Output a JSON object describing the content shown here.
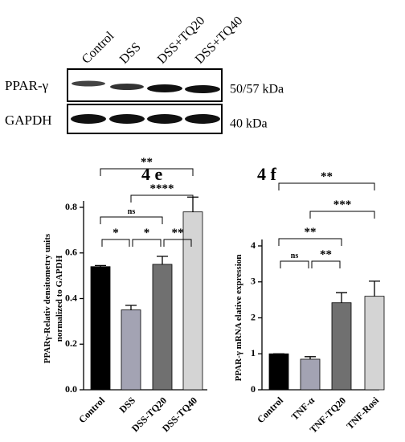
{
  "blot": {
    "lanes": [
      "Control",
      "DSS",
      "DSS+TQ20",
      "DSS+TQ40"
    ],
    "rows": [
      {
        "label": "PPAR-γ",
        "size": "50/57 kDa"
      },
      {
        "label": "GAPDH",
        "size": "40 kDa"
      }
    ]
  },
  "chart_data": [
    {
      "type": "bar",
      "panel": "4 e",
      "y_label": [
        "PPARγ-Relativ densitometry units",
        "normalized to GAPDH"
      ],
      "categories": [
        "Control",
        "DSS",
        "DSS-TQ20",
        "DSS-TQ40"
      ],
      "values": [
        0.54,
        0.35,
        0.55,
        0.78
      ],
      "errors": [
        0.005,
        0.02,
        0.035,
        0.065
      ],
      "colors": [
        "#000000",
        "#a3a3b3",
        "#707070",
        "#d4d4d4"
      ],
      "ylim": [
        0,
        0.8
      ],
      "yticks": [
        {
          "value": 0,
          "label": "0.0"
        },
        0.2,
        0.4,
        0.6,
        0.8
      ],
      "significance": [
        {
          "groups": [
            0,
            1
          ],
          "label": "*"
        },
        {
          "groups": [
            1,
            2
          ],
          "label": "*"
        },
        {
          "groups": [
            2,
            3
          ],
          "label": "**"
        },
        {
          "groups": [
            0,
            2
          ],
          "label": "ns"
        },
        {
          "groups": [
            1,
            3
          ],
          "label": "****"
        },
        {
          "groups": [
            0,
            3
          ],
          "label": "**"
        }
      ]
    },
    {
      "type": "bar",
      "panel": "4 f",
      "y_label": [
        "PPAR-γ mRNA elative expression"
      ],
      "categories": [
        "Control",
        "TNF-α",
        "TNF-TQ20",
        "TNF-Rosi"
      ],
      "values": [
        1.0,
        0.85,
        2.42,
        2.6
      ],
      "errors": [
        0,
        0.07,
        0.28,
        0.42
      ],
      "colors": [
        "#000000",
        "#a3a3b3",
        "#707070",
        "#d4d4d4"
      ],
      "ylim": [
        0,
        4
      ],
      "yticks": [
        0,
        1,
        2,
        3,
        4
      ],
      "significance": [
        {
          "groups": [
            0,
            1
          ],
          "label": "ns"
        },
        {
          "groups": [
            1,
            2
          ],
          "label": "**"
        },
        {
          "groups": [
            0,
            2
          ],
          "label": "**"
        },
        {
          "groups": [
            1,
            3
          ],
          "label": "***"
        },
        {
          "groups": [
            0,
            3
          ],
          "label": "**"
        }
      ]
    }
  ]
}
